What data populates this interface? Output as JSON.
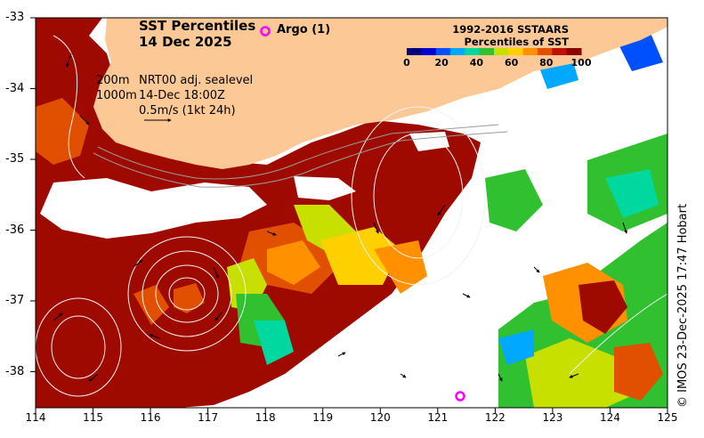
{
  "title": {
    "line1": "SST Percentiles",
    "line2": "14 Dec 2025"
  },
  "argo": {
    "label": "Argo (1)",
    "marker_color": "#ff00ff"
  },
  "info": {
    "depth1": "200m",
    "depth2": "1000m",
    "altimetry": "NRT00 adj. sealevel",
    "datetime": "14-Dec 18:00Z",
    "vector_scale": "0.5m/s (1kt 24h)"
  },
  "legend": {
    "title1": "1992-2016 SSTAARS",
    "title2": "Percentiles of SST",
    "ticks": [
      "0",
      "20",
      "40",
      "60",
      "80",
      "100"
    ],
    "colors": [
      "#00007f",
      "#0000d0",
      "#0050ff",
      "#00a8ff",
      "#00d8a0",
      "#30c030",
      "#c8e000",
      "#ffd000",
      "#ff9000",
      "#e05000",
      "#c01000",
      "#8c0000"
    ]
  },
  "axes": {
    "lon_ticks": [
      "114",
      "115",
      "116",
      "117",
      "118",
      "119",
      "120",
      "121",
      "122",
      "123",
      "124",
      "125"
    ],
    "lat_ticks": [
      "-33",
      "-34",
      "-35",
      "-36",
      "-37",
      "-38"
    ]
  },
  "credit": "© IMOS 23-Dec-2025 17:47 Hobart",
  "colors": {
    "land": "#fcc896",
    "nodata": "#ffffff"
  }
}
